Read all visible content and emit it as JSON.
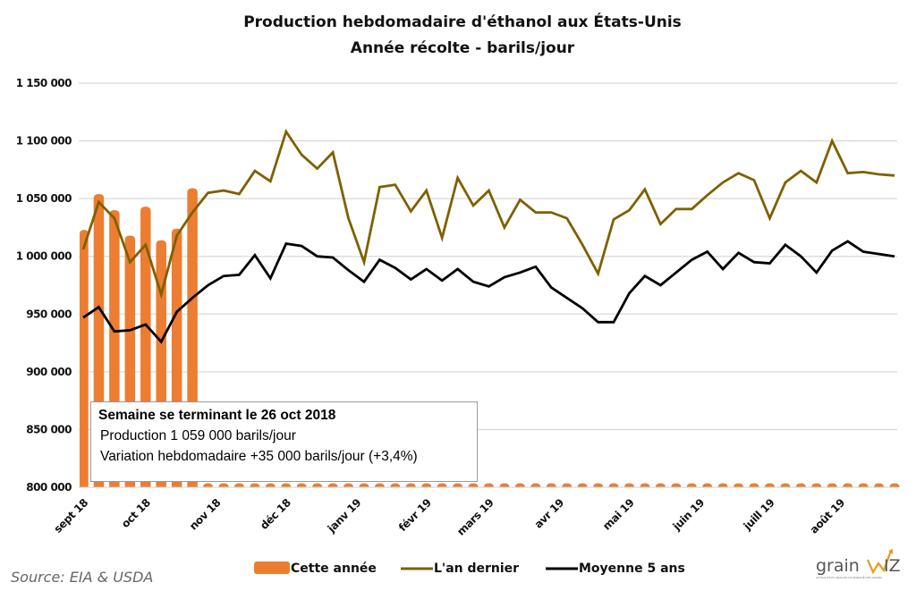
{
  "chart_data": {
    "type": "bar+line",
    "title": "Production hebdomadaire d'éthanol aux États-Unis",
    "subtitle": "Année récolte - baril s/jour",
    "ylabel": "",
    "xlabel": "",
    "ylim": [
      800000,
      1150000
    ],
    "yticks": [
      800000,
      850000,
      900000,
      950000,
      1000000,
      1050000,
      1100000,
      1150000
    ],
    "ytick_labels": [
      "800 000",
      "850 000",
      "900 000",
      "950 000",
      "1 000 000",
      "1 050 000",
      "1 100 000",
      "1 150 000"
    ],
    "grid": true,
    "n_weeks": 53,
    "x_month_labels": [
      {
        "label": "sept 18",
        "week": 0
      },
      {
        "label": "oct 18",
        "week": 4
      },
      {
        "label": "nov 18",
        "week": 8.5
      },
      {
        "label": "déc 18",
        "week": 13
      },
      {
        "label": "janv 19",
        "week": 17.5
      },
      {
        "label": "févr 19",
        "week": 22
      },
      {
        "label": "mars 19",
        "week": 26
      },
      {
        "label": "avr 19",
        "week": 30.5
      },
      {
        "label": "mai 19",
        "week": 35
      },
      {
        "label": "juin 19",
        "week": 39.5
      },
      {
        "label": "juill 19",
        "week": 44
      },
      {
        "label": "août 19",
        "week": 48.5
      }
    ],
    "series": [
      {
        "name": "Cette année",
        "kind": "bar",
        "color": "#ED7D31",
        "values": [
          1023000,
          1054000,
          1040000,
          1018000,
          1043000,
          1014000,
          1024000,
          1059000
        ]
      },
      {
        "name": "L'an dernier",
        "kind": "line",
        "color": "#7F6000",
        "values": [
          1006000,
          1047000,
          1033000,
          995000,
          1010000,
          967000,
          1018000,
          1038000,
          1055000,
          1057000,
          1054000,
          1074000,
          1065000,
          1108000,
          1088000,
          1076000,
          1090000,
          1033000,
          995000,
          1060000,
          1062000,
          1039000,
          1057000,
          1016000,
          1068000,
          1044000,
          1057000,
          1025000,
          1049000,
          1038000,
          1038000,
          1033000,
          1010000,
          985000,
          1032000,
          1040000,
          1058000,
          1028000,
          1041000,
          1041000,
          1053000,
          1064000,
          1072000,
          1066000,
          1033000,
          1064000,
          1074000,
          1064000,
          1100000,
          1072000,
          1073000,
          1071000,
          1070000
        ]
      },
      {
        "name": "Moyenne 5 ans",
        "kind": "line",
        "color": "#000000",
        "values": [
          947000,
          956000,
          935000,
          936000,
          941000,
          926000,
          952000,
          964000,
          975000,
          983000,
          984000,
          1001000,
          981000,
          1011000,
          1009000,
          1000000,
          999000,
          988000,
          978000,
          997000,
          990000,
          980000,
          989000,
          979000,
          989000,
          978000,
          974000,
          982000,
          986000,
          991000,
          973000,
          964000,
          955000,
          943000,
          943000,
          968000,
          983000,
          975000,
          986000,
          997000,
          1004000,
          989000,
          1003000,
          995000,
          994000,
          1010000,
          1000000,
          986000,
          1005000,
          1013000,
          1004000,
          1002000,
          1000000
        ]
      }
    ],
    "legend": [
      "Cette année",
      "L'an dernier",
      "Moyenne 5 ans"
    ],
    "legend_position": "bottom"
  },
  "annotation": {
    "heading": "Semaine se terminant le 26 oct 2018",
    "production": "Production 1 059 000 barils/jour",
    "variation": "Variation hebdomadaire +35 000 barils/jour (+3,4%)"
  },
  "source": "Source: EIA & USDA",
  "logo": {
    "text_left": "Grain",
    "text_right": "wiz",
    "tagline": "ACTUALITÉ ET ANALYSE DU MARCHÉ DES GRAINS"
  },
  "colors": {
    "bar": "#ED7D31",
    "last_year": "#7F6000",
    "avg": "#000000",
    "grid": "#D9D9D9"
  }
}
